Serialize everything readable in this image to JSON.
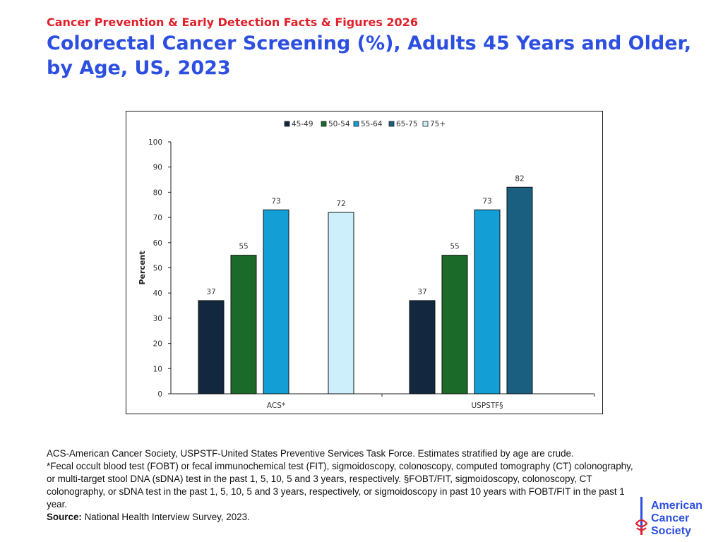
{
  "header": {
    "supertitle": "Cancer Prevention & Early Detection Facts & Figures 2026",
    "title": "Colorectal Cancer Screening (%), Adults 45 Years and Older, by Age, US, 2023"
  },
  "chart_data": {
    "type": "bar",
    "ylabel": "Percent",
    "xlabel": "",
    "ylim": [
      0,
      100
    ],
    "yticks": [
      0,
      10,
      20,
      30,
      40,
      50,
      60,
      70,
      80,
      90,
      100
    ],
    "grid": false,
    "legend_position": "top-center",
    "categories": [
      "ACS*",
      "USPSTF§"
    ],
    "series": [
      {
        "name": "45-49",
        "color": "#13273f",
        "values": [
          37,
          37
        ]
      },
      {
        "name": "50-54",
        "color": "#1b6a2a",
        "values": [
          55,
          55
        ]
      },
      {
        "name": "55-64",
        "color": "#139ed6",
        "values": [
          73,
          73
        ]
      },
      {
        "name": "65-75",
        "color": "#1a5f80",
        "values": [
          null,
          82
        ]
      },
      {
        "name": "75+",
        "color": "#cdeefb",
        "values": [
          72,
          null
        ]
      }
    ]
  },
  "footnotes": {
    "line1": "ACS-American Cancer Society, USPSTF-United States Preventive Services Task Force. Estimates stratified by age are crude.",
    "line2": "*Fecal occult blood test (FOBT) or fecal immunochemical test (FIT), sigmoidoscopy, colonoscopy, computed tomography (CT) colonography, or multi-target stool DNA (sDNA) test in the past 1, 5, 10, 5 and 3 years, respectively. §FOBT/FIT, sigmoidoscopy, colonoscopy, CT colonography, or sDNA test in the past 1, 5, 10, 5 and 3 years, respectively, or sigmoidoscopy in past 10 years with FOBT/FIT in the past 1 year.",
    "source_label": "Source:",
    "source_text": " National Health Interview Survey, 2023."
  },
  "logo": {
    "line1": "American",
    "line2": "Cancer",
    "line3": "Society",
    "color": "#2d4fe0",
    "accent": "#e0202a"
  }
}
